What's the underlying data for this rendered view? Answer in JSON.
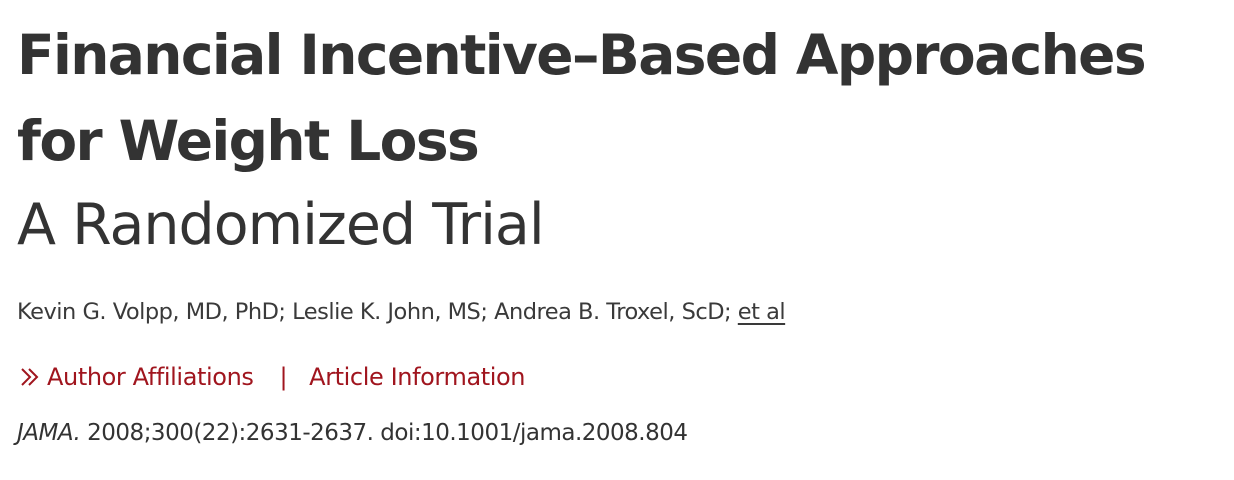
{
  "article": {
    "title_line1": "Financial Incentive–Based Approaches",
    "title_line2": "for Weight Loss",
    "subtitle": "A Randomized Trial",
    "authors_text": "Kevin G. Volpp, MD, PhD; Leslie K. John, MS; Andrea B. Troxel, ScD; ",
    "et_al_label": "et al",
    "links": {
      "author_affiliations": "Author Affiliations",
      "separator": "|",
      "article_information": "Article Information"
    },
    "citation": {
      "journal": "JAMA.",
      "details": " 2008;300(22):2631-2637. doi:10.1001/jama.2008.804"
    }
  },
  "colors": {
    "text": "#333333",
    "accent": "#a0151e"
  },
  "icons": {
    "expand": "double-chevron-right-icon"
  }
}
